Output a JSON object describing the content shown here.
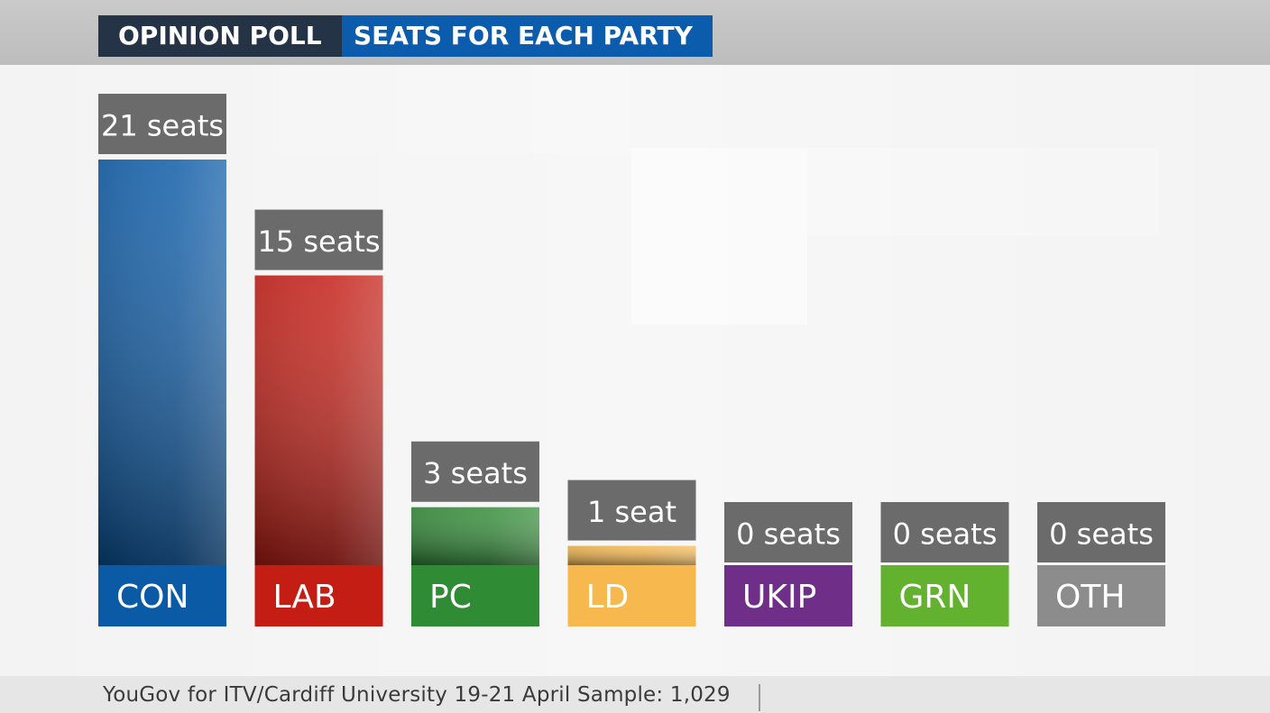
{
  "header": {
    "left_label": "OPINION POLL",
    "right_label": "SEATS FOR EACH PARTY"
  },
  "footer": {
    "source": "YouGov for ITV/Cardiff University 19-21 April Sample: 1,029"
  },
  "colors": {
    "header_left": "#253347",
    "header_right": "#0b5cac",
    "value_box": "#6b6b6b"
  },
  "chart_data": {
    "type": "bar",
    "categories": [
      "CON",
      "LAB",
      "PC",
      "LD",
      "UKIP",
      "GRN",
      "OTH"
    ],
    "values": [
      21,
      15,
      3,
      1,
      0,
      0,
      0
    ],
    "value_labels": [
      "21 seats",
      "15 seats",
      "3 seats",
      "1 seat",
      "0 seats",
      "0 seats",
      "0 seats"
    ],
    "colors": [
      "#0b5aa6",
      "#c41d14",
      "#2f8b34",
      "#f7b84d",
      "#6f2e88",
      "#62b22f",
      "#8c8c8c"
    ],
    "ylim": [
      0,
      21
    ],
    "grid": false,
    "title": "",
    "xlabel": "",
    "ylabel": ""
  }
}
